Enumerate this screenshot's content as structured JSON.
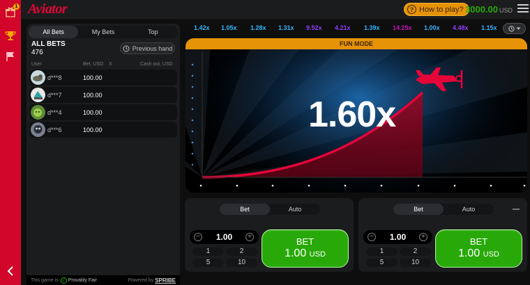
{
  "header": {
    "logo": "Aviator",
    "how_to_play": "How to play?",
    "balance": "3000.00",
    "currency": "USD"
  },
  "sidebar": {
    "gift_badge": "1"
  },
  "bets_panel": {
    "tabs": [
      "All Bets",
      "My Bets",
      "Top"
    ],
    "title": "ALL BETS",
    "count": "476",
    "previous_hand": "Previous hand",
    "columns": {
      "user": "User",
      "bet": "Bet, USD",
      "x": "X",
      "cashout": "Cash out, USD"
    },
    "rows": [
      {
        "user": "d***8",
        "bet": "100.00"
      },
      {
        "user": "d***7",
        "bet": "100.00"
      },
      {
        "user": "d***4",
        "bet": "100.00"
      },
      {
        "user": "d***6",
        "bet": "100.00"
      }
    ],
    "footer": {
      "this_game_is": "This game is",
      "provably_fair": "Provably Fair",
      "powered_by": "Powered by",
      "brand": "SPRIBE"
    }
  },
  "history": [
    {
      "value": "1.42x",
      "color": "#34b4ff"
    },
    {
      "value": "1.05x",
      "color": "#34b4ff"
    },
    {
      "value": "1.28x",
      "color": "#34b4ff"
    },
    {
      "value": "1.31x",
      "color": "#34b4ff"
    },
    {
      "value": "9.52x",
      "color": "#913ef8"
    },
    {
      "value": "4.21x",
      "color": "#913ef8"
    },
    {
      "value": "1.39x",
      "color": "#34b4ff"
    },
    {
      "value": "14.25x",
      "color": "#c017b4"
    },
    {
      "value": "1.00x",
      "color": "#34b4ff"
    },
    {
      "value": "4.48x",
      "color": "#913ef8"
    },
    {
      "value": "1.15x",
      "color": "#34b4ff"
    }
  ],
  "game": {
    "mode_banner": "FUN MODE",
    "multiplier": "1.60x"
  },
  "bet_panels": [
    {
      "tabs": [
        "Bet",
        "Auto"
      ],
      "stake": "1.00",
      "quick": [
        "1",
        "2",
        "5",
        "10"
      ],
      "bet_label": "BET",
      "bet_amount": "1.00",
      "bet_currency": "USD"
    },
    {
      "tabs": [
        "Bet",
        "Auto"
      ],
      "stake": "1.00",
      "quick": [
        "1",
        "2",
        "5",
        "10"
      ],
      "bet_label": "BET",
      "bet_amount": "1.00",
      "bet_currency": "USD"
    }
  ],
  "colors": {
    "brand_red": "#d1062a",
    "accent_orange": "#e69308",
    "bet_green": "#28a909",
    "curve_red": "#e50539"
  }
}
